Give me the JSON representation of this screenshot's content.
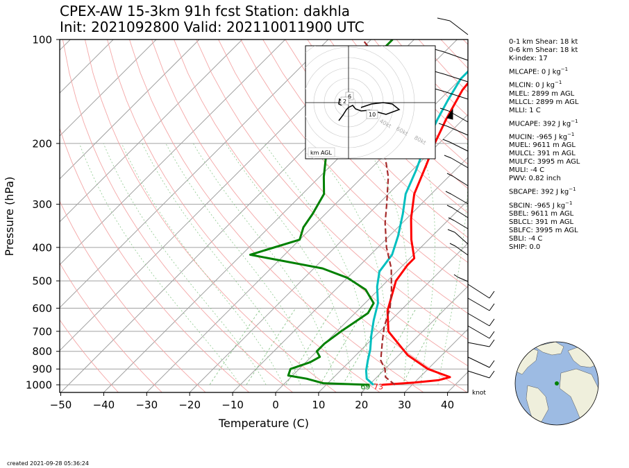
{
  "title_line1": "CPEX-AW 15-3km  91h fcst  Station: dakhla",
  "title_line2": "Init: 2021092800  Valid: 202110011900 UTC",
  "created": "created 2021-09-28 05:36:24",
  "indices": [
    {
      "text": "0-1 km Shear: 18 kt"
    },
    {
      "text": "0-6 km Shear: 18 kt"
    },
    {
      "text": "K-index: 17"
    },
    {
      "text": "MLCAPE: 0 J kg",
      "sup": "−1"
    },
    {
      "text": "MLCIN: 0 J kg",
      "sup": "−1"
    },
    {
      "text": "MLEL: 2899 m AGL"
    },
    {
      "text": "MLLCL: 2899 m AGL"
    },
    {
      "text": "MLLI: 1 C"
    },
    {
      "text": "MUCAPE: 392 J kg",
      "sup": "−1"
    },
    {
      "text": "MUCIN: -965 J kg",
      "sup": "−1"
    },
    {
      "text": "MUEL: 9611 m AGL"
    },
    {
      "text": "MULCL: 391 m AGL"
    },
    {
      "text": "MULFC: 3995 m AGL"
    },
    {
      "text": "MULI: -4 C"
    },
    {
      "text": "PWV: 0.82 inch"
    },
    {
      "text": "SBCAPE: 392 J kg",
      "sup": "−1"
    },
    {
      "text": "SBCIN: -965 J kg",
      "sup": "−1"
    },
    {
      "text": "SBEL: 9611 m AGL"
    },
    {
      "text": "SBLCL: 391 m AGL"
    },
    {
      "text": "SBLFC: 3995 m AGL"
    },
    {
      "text": "SBLI: -4 C"
    },
    {
      "text": "SHIP: 0.0"
    }
  ],
  "chart_data": {
    "type": "line",
    "xlabel": "Temperature (C)",
    "ylabel": "Pressure (hPa)",
    "xlim": [
      -50,
      45
    ],
    "ylim": [
      1050,
      100
    ],
    "y_scale": "log",
    "x_ticks": [
      -50,
      -40,
      -30,
      -20,
      -10,
      0,
      10,
      20,
      30,
      40
    ],
    "y_ticks": [
      100,
      200,
      300,
      400,
      500,
      600,
      700,
      800,
      900,
      1000
    ],
    "skew": "x-axis skewed 45 degrees",
    "series": [
      {
        "role": "temperature",
        "color": "#ff0000",
        "points": [
          [
            23,
            1000
          ],
          [
            30,
            985
          ],
          [
            35,
            970
          ],
          [
            37,
            950
          ],
          [
            30,
            900
          ],
          [
            22,
            820
          ],
          [
            12,
            700
          ],
          [
            7,
            610
          ],
          [
            2,
            500
          ],
          [
            1,
            450
          ],
          [
            1,
            430
          ],
          [
            -4,
            380
          ],
          [
            -9,
            330
          ],
          [
            -14,
            280
          ],
          [
            -18,
            230
          ],
          [
            -21,
            200
          ],
          [
            -24,
            170
          ],
          [
            -27,
            140
          ],
          [
            -28,
            120
          ],
          [
            -28,
            105
          ]
        ]
      },
      {
        "role": "dewpoint",
        "color": "#008000",
        "points": [
          [
            20,
            1000
          ],
          [
            9,
            990
          ],
          [
            4,
            960
          ],
          [
            -1,
            940
          ],
          [
            -2,
            900
          ],
          [
            1,
            860
          ],
          [
            2,
            830
          ],
          [
            0,
            800
          ],
          [
            0,
            760
          ],
          [
            1,
            700
          ],
          [
            2,
            660
          ],
          [
            3,
            620
          ],
          [
            2,
            580
          ],
          [
            -3,
            530
          ],
          [
            -10,
            490
          ],
          [
            -18,
            460
          ],
          [
            -38,
            420
          ],
          [
            -30,
            380
          ],
          [
            -32,
            350
          ],
          [
            -33,
            320
          ],
          [
            -35,
            280
          ],
          [
            -39,
            250
          ],
          [
            -43,
            220
          ],
          [
            -47,
            190
          ],
          [
            -54,
            165
          ],
          [
            -57,
            145
          ],
          [
            -56,
            130
          ],
          [
            -55,
            115
          ],
          [
            -55,
            100
          ]
        ]
      },
      {
        "role": "wet-bulb",
        "color": "#00bfbf",
        "points": [
          [
            21,
            1000
          ],
          [
            18,
            960
          ],
          [
            16,
            910
          ],
          [
            14,
            850
          ],
          [
            12,
            790
          ],
          [
            9,
            720
          ],
          [
            6,
            650
          ],
          [
            3,
            580
          ],
          [
            -1,
            520
          ],
          [
            -4,
            470
          ],
          [
            -5,
            420
          ],
          [
            -8,
            370
          ],
          [
            -12,
            320
          ],
          [
            -16,
            280
          ],
          [
            -19,
            240
          ],
          [
            -23,
            200
          ],
          [
            -26,
            170
          ],
          [
            -28,
            150
          ],
          [
            -30,
            130
          ],
          [
            -30,
            115
          ],
          [
            -30,
            100
          ]
        ]
      },
      {
        "role": "parcel",
        "color": "#a52a2a",
        "dashed": true,
        "points": [
          [
            26,
            1000
          ],
          [
            24,
            975
          ],
          [
            22,
            950
          ],
          [
            20,
            900
          ],
          [
            17,
            850
          ],
          [
            13,
            750
          ],
          [
            10,
            680
          ],
          [
            7,
            600
          ],
          [
            3,
            530
          ],
          [
            -2,
            460
          ],
          [
            -8,
            400
          ],
          [
            -14,
            340
          ],
          [
            -18,
            300
          ],
          [
            -24,
            250
          ],
          [
            -33,
            200
          ],
          [
            -41,
            160
          ],
          [
            -49,
            130
          ],
          [
            -56,
            110
          ],
          [
            -62,
            100
          ]
        ]
      }
    ],
    "surface_labels": [
      {
        "text": "69",
        "color": "#008000",
        "x": 20,
        "y": 1030
      },
      {
        "text": "73",
        "color": "#ff0000",
        "x": 23,
        "y": 1030
      }
    ],
    "wind_unit_label": "knot",
    "hodograph": {
      "label": "km AGL",
      "ring_labels": [
        "40kt",
        "60kt",
        "80kt"
      ],
      "height_labels": [
        "6",
        "2",
        "10"
      ]
    }
  }
}
